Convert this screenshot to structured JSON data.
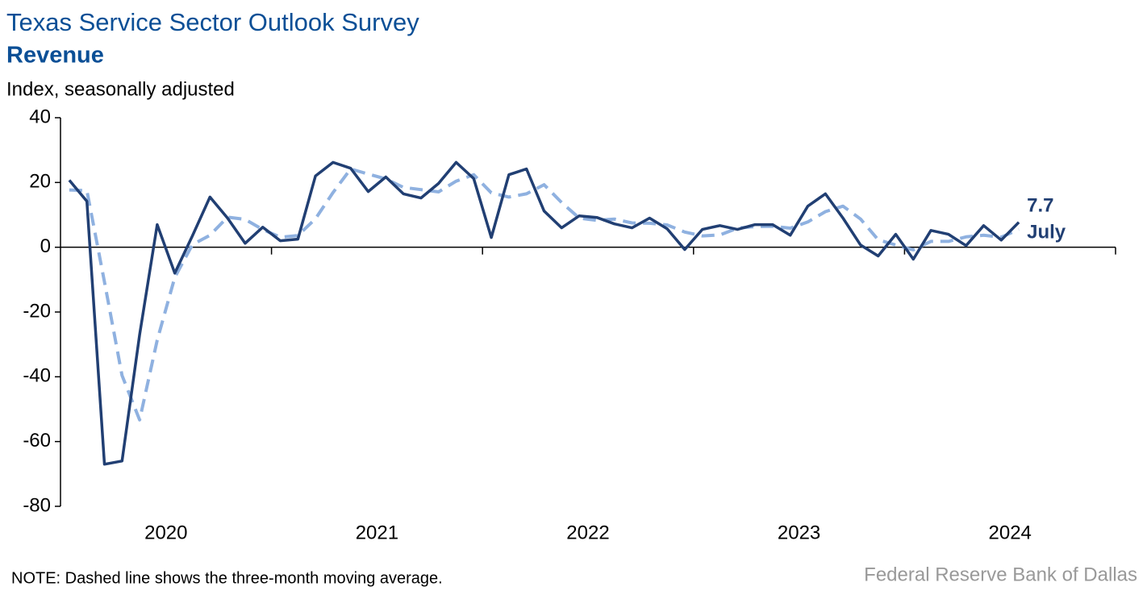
{
  "chart_data": {
    "type": "line",
    "title": "Texas Service Sector Outlook Survey",
    "subtitle": "Revenue",
    "y_label": "Index, seasonally adjusted",
    "categories": [
      null,
      null,
      null,
      null,
      null,
      null,
      null,
      null,
      null,
      null,
      null,
      null,
      null,
      null,
      null,
      null,
      null,
      null,
      null,
      null,
      null,
      null,
      null,
      null,
      null,
      null,
      null,
      null,
      null,
      null,
      null,
      null,
      null,
      null,
      null,
      null,
      null,
      null,
      null,
      null,
      null,
      null,
      null,
      null,
      null,
      null,
      null,
      null,
      null,
      null,
      null,
      null,
      null,
      null,
      null
    ],
    "x_axis_labels": [
      "2020",
      "2021",
      "2022",
      "2023",
      "2024"
    ],
    "series": [
      {
        "color": "#213f73",
        "dash": false,
        "values": [
          20.7,
          14.2,
          -67,
          -66,
          -27,
          7,
          -8,
          3.5,
          15.5,
          9,
          1.2,
          6.2,
          2,
          2.5,
          22,
          26.2,
          24.4,
          17.2,
          21.7,
          16.5,
          15.2,
          19.7,
          26.2,
          21.2,
          3,
          22.4,
          24.2,
          11.2,
          6,
          9.7,
          9.2,
          7.2,
          6,
          9,
          5.7,
          -0.7,
          5.5,
          6.7,
          5.5,
          7,
          7,
          3.7,
          12.7,
          16.5,
          9,
          0.7,
          -2.7,
          4,
          -3.7,
          5.2,
          4,
          0.5,
          6.7,
          2.2,
          7.7
        ]
      },
      {
        "color": "#8fb1e0",
        "dash": true,
        "values": [
          17.7,
          17.5,
          -10.7,
          -39.6,
          -53.3,
          -28.7,
          -9.3,
          0.8,
          3.7,
          9.3,
          8.6,
          5.5,
          3.1,
          3.6,
          8.8,
          16.9,
          24.2,
          22.6,
          21.1,
          18.5,
          17.8,
          17.1,
          20.4,
          22.4,
          16.8,
          15.5,
          16.5,
          19.3,
          13.8,
          9,
          8.3,
          8.7,
          7.5,
          7.4,
          6.9,
          4.7,
          3.5,
          3.8,
          5.9,
          6.4,
          6.5,
          5.9,
          7.8,
          11,
          12.7,
          8.7,
          2.3,
          0.7,
          -0.8,
          1.8,
          1.8,
          3.2,
          3.7,
          3.1,
          5.5
        ]
      }
    ],
    "annotation": "July",
    "ylim": [
      -80,
      40
    ],
    "yticks": [
      -80,
      -60,
      -40,
      -20,
      0,
      20,
      40
    ],
    "note": "NOTE: Dashed line shows the three-month moving average.",
    "source": "Federal Reserve Bank of Dallas"
  }
}
